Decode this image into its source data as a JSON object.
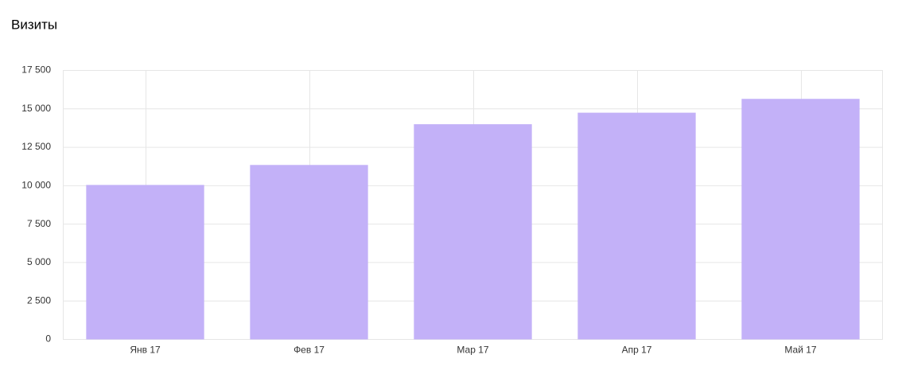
{
  "chart_data": {
    "type": "bar",
    "title": "Визиты",
    "categories": [
      "Янв 17",
      "Фев 17",
      "Мар 17",
      "Апр 17",
      "Май 17"
    ],
    "values": [
      10050,
      11350,
      14000,
      14750,
      15650
    ],
    "color": "#c3b1f8",
    "ylim": [
      0,
      17500
    ],
    "yticks": [
      0,
      {
        "value": 2500,
        "label": "2 500"
      },
      {
        "value": 5000,
        "label": "5 000"
      },
      {
        "value": 7500,
        "label": "7 500"
      },
      {
        "value": 10000,
        "label": "10 000"
      },
      {
        "value": 12500,
        "label": "12 500"
      },
      {
        "value": 15000,
        "label": "15 000"
      },
      {
        "value": 17500,
        "label": "17 500"
      }
    ],
    "grid": true
  }
}
